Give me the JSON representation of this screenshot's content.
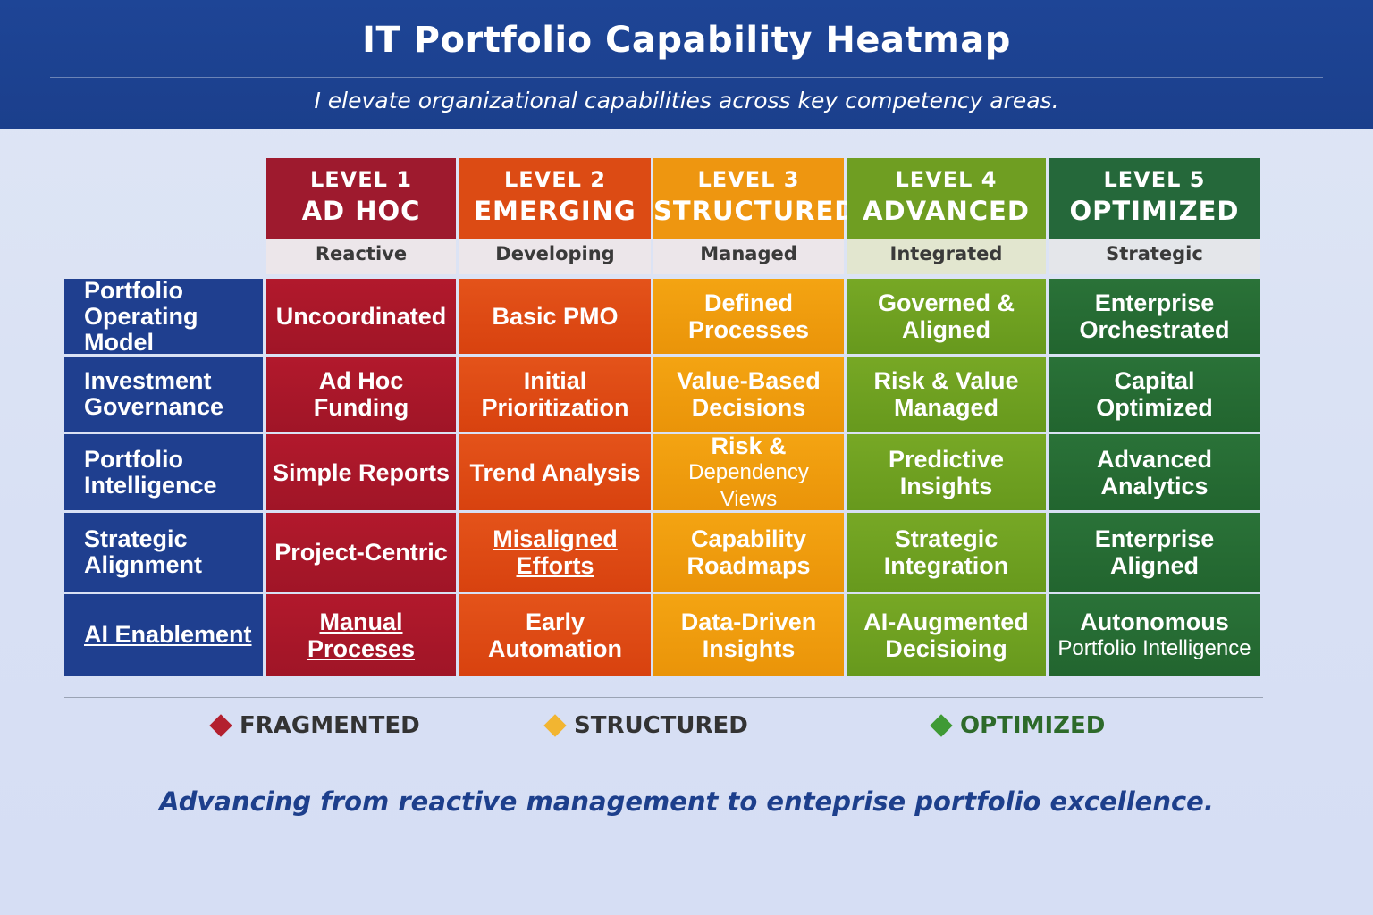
{
  "header": {
    "title": "IT Portfolio Capability Heatmap",
    "subtitle": "I elevate organizational capabilities across key competency areas."
  },
  "levels": [
    {
      "number": "LEVEL 1",
      "name": "AD HOC",
      "descriptor": "Reactive",
      "color": "#9e1a2e"
    },
    {
      "number": "LEVEL 2",
      "name": "EMERGING",
      "descriptor": "Developing",
      "color": "#dc4b14"
    },
    {
      "number": "LEVEL 3",
      "name": "STRUCTURED",
      "descriptor": "Managed",
      "color": "#ee9610"
    },
    {
      "number": "LEVEL 4",
      "name": "ADVANCED",
      "descriptor": "Integrated",
      "color": "#6f9e22"
    },
    {
      "number": "LEVEL 5",
      "name": "OPTIMIZED",
      "descriptor": "Strategic",
      "color": "#25683a"
    }
  ],
  "rows": [
    {
      "label": [
        "Portfolio",
        "Operating Model"
      ],
      "cells": [
        [
          "Uncoordinated"
        ],
        [
          "Basic PMO"
        ],
        [
          "Defined",
          "Processes"
        ],
        [
          "Governed &",
          "Aligned"
        ],
        [
          "Enterprise",
          "Orchestrated"
        ]
      ]
    },
    {
      "label": [
        "Investment",
        "Governance"
      ],
      "cells": [
        [
          "Ad Hoc Funding"
        ],
        [
          "Initial",
          "Prioritization"
        ],
        [
          "Value-Based",
          "Decisions"
        ],
        [
          "Risk & Value",
          "Managed"
        ],
        [
          "Capital",
          "Optimized"
        ]
      ]
    },
    {
      "label": [
        "Portfolio",
        "Intelligence"
      ],
      "cells": [
        [
          "Simple Reports"
        ],
        [
          "Trend Analysis"
        ],
        [
          "Risk &",
          "Dependency Views"
        ],
        [
          "Predictive",
          "Insights"
        ],
        [
          "Advanced",
          "Analytics"
        ]
      ]
    },
    {
      "label": [
        "Strategic",
        "Alignment"
      ],
      "cells": [
        [
          "Project-Centric"
        ],
        [
          "Misaligned Efforts"
        ],
        [
          "Capability",
          "Roadmaps"
        ],
        [
          "Strategic",
          "Integration"
        ],
        [
          "Enterprise",
          "Aligned"
        ]
      ]
    },
    {
      "label": [
        "AI Enablement"
      ],
      "cells": [
        [
          "Manual Proceses"
        ],
        [
          "Early Automation"
        ],
        [
          "Data-Driven",
          "Insights"
        ],
        [
          "AI-Augmented",
          "Decisioing"
        ],
        [
          "Autonomous",
          "Portfolio Intelligence"
        ]
      ]
    }
  ],
  "legend": [
    {
      "label": "FRAGMENTED",
      "color": "#b3202f",
      "text_color": "#333333"
    },
    {
      "label": "STRUCTURED",
      "color": "#f2b531",
      "text_color": "#333333"
    },
    {
      "label": "OPTIMIZED",
      "color": "#3f9a35",
      "text_color": "#2d6a2a"
    }
  ],
  "footer": "Advancing from reactive management to enteprise portfolio excellence."
}
